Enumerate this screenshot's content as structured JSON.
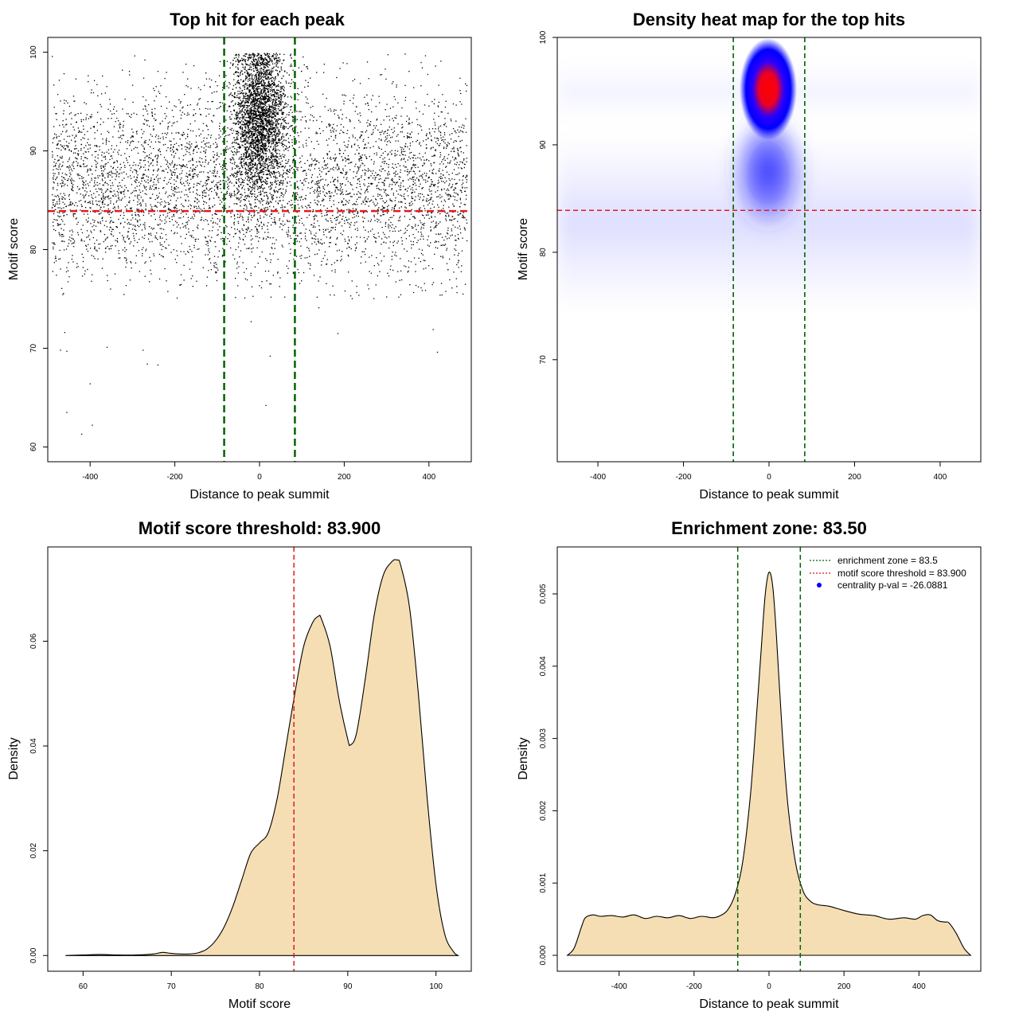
{
  "chart_data": [
    {
      "type": "scatter",
      "title": "Top hit for each peak",
      "xlabel": "Distance to peak summit",
      "ylabel": "Motif score",
      "xlim": [
        -500,
        500
      ],
      "ylim": [
        58.5,
        101.5
      ],
      "xticks": [
        -400,
        -200,
        0,
        200,
        400
      ],
      "yticks": [
        60,
        70,
        80,
        90,
        100
      ],
      "vlines": [
        -83.5,
        83.5
      ],
      "vline_color": "#006400",
      "hline": 83.9,
      "hline_color": "#e41a1c",
      "point_color": "#000000",
      "distribution": {
        "background_x_range": [
          -500,
          500
        ],
        "background_y_mean": 86.5,
        "background_y_sd": 4.8,
        "central_x_sd": 30,
        "central_y_mean": 93.5,
        "central_y_sd": 3.8,
        "y_max": 99.9
      },
      "outliers": [
        {
          "x": -420,
          "y": 61.3
        },
        {
          "x": -395,
          "y": 62.2
        },
        {
          "x": -455,
          "y": 63.5
        },
        {
          "x": -400,
          "y": 66.4
        },
        {
          "x": -360,
          "y": 70.1
        },
        {
          "x": -470,
          "y": 69.8
        },
        {
          "x": -455,
          "y": 69.7
        },
        {
          "x": -275,
          "y": 69.8
        },
        {
          "x": -265,
          "y": 68.4
        },
        {
          "x": -240,
          "y": 68.3
        },
        {
          "x": 25,
          "y": 69.2
        },
        {
          "x": 15,
          "y": 64.2
        },
        {
          "x": -20,
          "y": 72.7
        },
        {
          "x": 420,
          "y": 69.6
        },
        {
          "x": 410,
          "y": 71.9
        },
        {
          "x": 185,
          "y": 71.5
        },
        {
          "x": 140,
          "y": 74.1
        },
        {
          "x": -460,
          "y": 71.6
        },
        {
          "x": 300,
          "y": 75.2
        }
      ]
    },
    {
      "type": "heatmap",
      "title": "Density heat map for the top hits",
      "xlabel": "Distance to peak summit",
      "ylabel": "Motif score",
      "xlim": [
        -495,
        495
      ],
      "ylim": [
        60.5,
        100
      ],
      "xticks": [
        -400,
        -200,
        0,
        200,
        400
      ],
      "yticks": [
        70,
        80,
        90,
        100
      ],
      "vlines": [
        -83.5,
        83.5
      ],
      "vline_color": "#006400",
      "hline": 83.9,
      "hline_color": "#e41a1c",
      "color_scale": [
        "#ffffff",
        "#0000ff",
        "#ff0000"
      ]
    },
    {
      "type": "area",
      "title": "Motif score threshold: 83.900",
      "xlabel": "Motif score",
      "ylabel": "Density",
      "xlim": [
        56,
        104
      ],
      "ylim": [
        -0.003,
        0.078
      ],
      "xticks": [
        60,
        70,
        80,
        90,
        100
      ],
      "yticks": [
        0.0,
        0.02,
        0.04,
        0.06
      ],
      "ytick_labels": [
        "0.00",
        "0.02",
        "0.04",
        "0.06"
      ],
      "vline": 83.9,
      "vline_color": "#e41a1c",
      "fill": "#f5deb3",
      "x": [
        58,
        60,
        62,
        64,
        66,
        68,
        69,
        70,
        71,
        72,
        73,
        74,
        75,
        76,
        77,
        78,
        79,
        80,
        81,
        82,
        83,
        84,
        85,
        86,
        86.7,
        87,
        88,
        89,
        90,
        90.3,
        91,
        92,
        93,
        94,
        95,
        95.6,
        96,
        97,
        98,
        99,
        100,
        101,
        102,
        102.5
      ],
      "y": [
        0.0,
        0.0001,
        0.0002,
        0.0001,
        0.0001,
        0.0003,
        0.0006,
        0.0004,
        0.0003,
        0.0003,
        0.0005,
        0.0012,
        0.0028,
        0.0055,
        0.0095,
        0.0145,
        0.0195,
        0.0215,
        0.0235,
        0.03,
        0.04,
        0.05,
        0.059,
        0.0635,
        0.0648,
        0.0643,
        0.059,
        0.049,
        0.0413,
        0.0402,
        0.0425,
        0.053,
        0.065,
        0.0725,
        0.0752,
        0.0755,
        0.0745,
        0.0665,
        0.05,
        0.03,
        0.0135,
        0.004,
        0.0007,
        0.0
      ]
    },
    {
      "type": "area",
      "title": "Enrichment zone: 83.50",
      "xlabel": "Distance to peak summit",
      "ylabel": "Density",
      "xlim": [
        -565,
        565
      ],
      "ylim": [
        -0.00022,
        0.00565
      ],
      "xticks": [
        -400,
        -200,
        0,
        200,
        400
      ],
      "yticks": [
        0.0,
        0.001,
        0.002,
        0.003,
        0.004,
        0.005
      ],
      "ytick_labels": [
        "0.000",
        "0.001",
        "0.002",
        "0.003",
        "0.004",
        "0.005"
      ],
      "vlines": [
        -83.5,
        83.5
      ],
      "vline_color": "#006400",
      "fill": "#f5deb3",
      "x": [
        -538,
        -520,
        -500,
        -490,
        -470,
        -450,
        -420,
        -390,
        -360,
        -330,
        -300,
        -270,
        -240,
        -210,
        -180,
        -150,
        -130,
        -110,
        -90,
        -70,
        -50,
        -35,
        -20,
        -10,
        0,
        10,
        20,
        35,
        50,
        70,
        90,
        110,
        130,
        160,
        200,
        240,
        280,
        320,
        360,
        390,
        410,
        430,
        450,
        470,
        480,
        500,
        520,
        538
      ],
      "y": [
        0.0,
        0.0001,
        0.0004,
        0.00052,
        0.00056,
        0.00054,
        0.00055,
        0.00053,
        0.00056,
        0.00051,
        0.00054,
        0.00052,
        0.00055,
        0.00051,
        0.00054,
        0.00052,
        0.00055,
        0.00063,
        0.00085,
        0.0013,
        0.0022,
        0.0032,
        0.0043,
        0.005,
        0.0053,
        0.0051,
        0.0044,
        0.0031,
        0.0021,
        0.0013,
        0.0009,
        0.00075,
        0.0007,
        0.00068,
        0.00062,
        0.00057,
        0.00055,
        0.0005,
        0.00052,
        0.0005,
        0.00055,
        0.00056,
        0.00048,
        0.00046,
        0.00045,
        0.0003,
        0.0001,
        0.0
      ]
    }
  ],
  "legend": {
    "items": [
      {
        "label": "enrichment zone = 83.5",
        "color": "#006400",
        "style": "dotted-line"
      },
      {
        "label": "motif score threshold = 83.900",
        "color": "#e41a1c",
        "style": "dotted-line"
      },
      {
        "label": "centrality p-val = -26.0881",
        "color": "#0000ff",
        "style": "dot"
      }
    ]
  }
}
